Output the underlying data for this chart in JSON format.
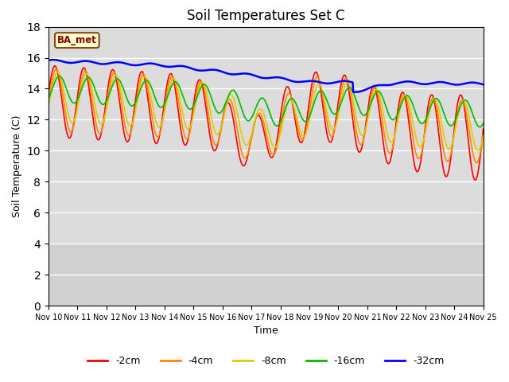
{
  "title": "Soil Temperatures Set C",
  "xlabel": "Time",
  "ylabel": "Soil Temperature (C)",
  "ylim": [
    0,
    18
  ],
  "yticks": [
    0,
    2,
    4,
    6,
    8,
    10,
    12,
    14,
    16,
    18
  ],
  "xtick_labels": [
    "Nov 10",
    "Nov 11",
    "Nov 12",
    "Nov 13",
    "Nov 14",
    "Nov 15",
    "Nov 16",
    "Nov 17",
    "Nov 18",
    "Nov 19",
    "Nov 20",
    "Nov 21",
    "Nov 22",
    "Nov 23",
    "Nov 24",
    "Nov 25"
  ],
  "legend_labels": [
    "-2cm",
    "-4cm",
    "-8cm",
    "-16cm",
    "-32cm"
  ],
  "legend_colors": [
    "#FF0000",
    "#FF8800",
    "#DDCC00",
    "#00BB00",
    "#0000FF"
  ],
  "line_widths": [
    1.2,
    1.2,
    1.2,
    1.2,
    1.8
  ],
  "station_label": "BA_met",
  "background_color": "#FFFFFF",
  "plot_bg_color": "#DCDCDC",
  "title_fontsize": 12,
  "axis_fontsize": 9,
  "num_points": 720,
  "days": 15
}
